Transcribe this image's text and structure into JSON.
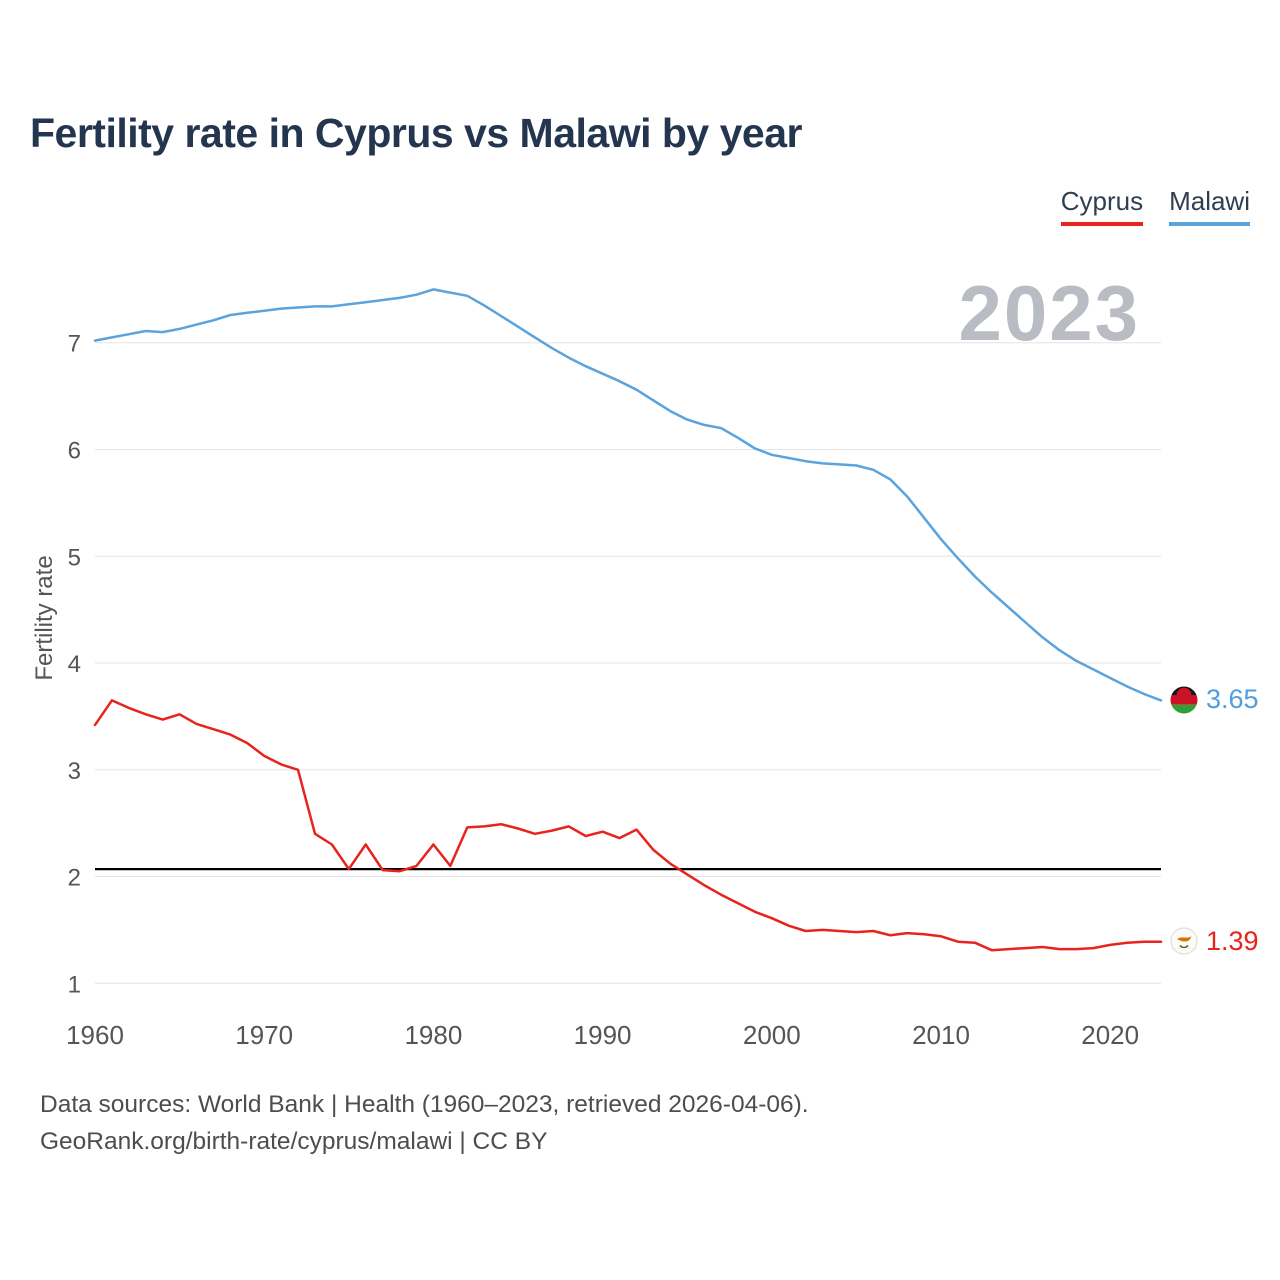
{
  "title": "Fertility rate in Cyprus vs Malawi by year",
  "watermark": "2023",
  "footer": {
    "line1": "Data sources: World Bank | Health (1960–2023, retrieved 2026-04-06).",
    "line2": "GeoRank.org/birth-rate/cyprus/malawi | CC BY"
  },
  "chart_data": {
    "type": "line",
    "title": "Fertility rate in Cyprus vs Malawi by year",
    "xlabel": "",
    "ylabel": "Fertility rate",
    "grid": true,
    "legend_position": "top-right",
    "xlim": [
      1960,
      2023
    ],
    "ylim": [
      0.75,
      7.7
    ],
    "x_ticks": [
      1960,
      1970,
      1980,
      1990,
      2000,
      2010,
      2020
    ],
    "y_ticks": [
      1,
      2,
      3,
      4,
      5,
      6,
      7
    ],
    "reference_line": {
      "value": 2.07,
      "color": "#000000"
    },
    "x": [
      1960,
      1961,
      1962,
      1963,
      1964,
      1965,
      1966,
      1967,
      1968,
      1969,
      1970,
      1971,
      1972,
      1973,
      1974,
      1975,
      1976,
      1977,
      1978,
      1979,
      1980,
      1981,
      1982,
      1983,
      1984,
      1985,
      1986,
      1987,
      1988,
      1989,
      1990,
      1991,
      1992,
      1993,
      1994,
      1995,
      1996,
      1997,
      1998,
      1999,
      2000,
      2001,
      2002,
      2003,
      2004,
      2005,
      2006,
      2007,
      2008,
      2009,
      2010,
      2011,
      2012,
      2013,
      2014,
      2015,
      2016,
      2017,
      2018,
      2019,
      2020,
      2021,
      2022,
      2023
    ],
    "series": [
      {
        "name": "Cyprus",
        "color": "#e8231d",
        "label_color": "#e8231d",
        "end_label": "1.39",
        "values": [
          3.42,
          3.65,
          3.58,
          3.52,
          3.47,
          3.52,
          3.43,
          3.38,
          3.33,
          3.25,
          3.13,
          3.05,
          3.0,
          2.4,
          2.3,
          2.07,
          2.3,
          2.06,
          2.05,
          2.1,
          2.3,
          2.1,
          2.46,
          2.47,
          2.49,
          2.45,
          2.4,
          2.43,
          2.47,
          2.38,
          2.42,
          2.36,
          2.44,
          2.25,
          2.12,
          2.02,
          1.92,
          1.83,
          1.75,
          1.67,
          1.61,
          1.54,
          1.49,
          1.5,
          1.49,
          1.48,
          1.49,
          1.45,
          1.47,
          1.46,
          1.44,
          1.39,
          1.38,
          1.31,
          1.32,
          1.33,
          1.34,
          1.32,
          1.32,
          1.33,
          1.36,
          1.38,
          1.39,
          1.39
        ]
      },
      {
        "name": "Malawi",
        "color": "#5ba3dc",
        "label_color": "#4f9fe0",
        "end_label": "3.65",
        "values": [
          7.02,
          7.05,
          7.08,
          7.11,
          7.1,
          7.13,
          7.17,
          7.21,
          7.26,
          7.28,
          7.3,
          7.32,
          7.33,
          7.34,
          7.34,
          7.36,
          7.38,
          7.4,
          7.42,
          7.45,
          7.5,
          7.47,
          7.44,
          7.35,
          7.25,
          7.15,
          7.05,
          6.95,
          6.86,
          6.78,
          6.71,
          6.64,
          6.56,
          6.46,
          6.36,
          6.28,
          6.23,
          6.2,
          6.11,
          6.01,
          5.95,
          5.92,
          5.89,
          5.87,
          5.86,
          5.85,
          5.81,
          5.72,
          5.56,
          5.36,
          5.16,
          4.98,
          4.81,
          4.66,
          4.52,
          4.38,
          4.24,
          4.12,
          4.02,
          3.94,
          3.86,
          3.78,
          3.71,
          3.65
        ]
      }
    ]
  }
}
